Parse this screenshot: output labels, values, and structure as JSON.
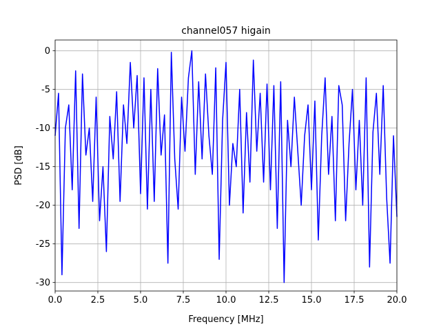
{
  "chart_data": {
    "type": "line",
    "title": "channel057 higain",
    "xlabel": "Frequency [MHz]",
    "ylabel": "PSD [dB]",
    "x": [
      0,
      0.2,
      0.4,
      0.6,
      0.8,
      1,
      1.2,
      1.4,
      1.6,
      1.8,
      2,
      2.2,
      2.4,
      2.6,
      2.8,
      3,
      3.2,
      3.4,
      3.6,
      3.8,
      4,
      4.2,
      4.4,
      4.6,
      4.8,
      5,
      5.2,
      5.4,
      5.6,
      5.8,
      6,
      6.2,
      6.4,
      6.6,
      6.8,
      7,
      7.2,
      7.4,
      7.6,
      7.8,
      8,
      8.2,
      8.4,
      8.6,
      8.8,
      9,
      9.2,
      9.4,
      9.6,
      9.8,
      10,
      10.2,
      10.4,
      10.6,
      10.8,
      11,
      11.2,
      11.4,
      11.6,
      11.8,
      12,
      12.2,
      12.4,
      12.6,
      12.8,
      13,
      13.2,
      13.4,
      13.6,
      13.8,
      14,
      14.2,
      14.4,
      14.6,
      14.8,
      15,
      15.2,
      15.4,
      15.6,
      15.8,
      16,
      16.2,
      16.4,
      16.6,
      16.8,
      17,
      17.2,
      17.4,
      17.6,
      17.8,
      18,
      18.2,
      18.4,
      18.6,
      18.8,
      19,
      19.2,
      19.4,
      19.6,
      19.8,
      20
    ],
    "series": [
      {
        "name": "channel057",
        "color": "#0000ff",
        "values": [
          -11,
          -5.5,
          -29,
          -10,
          -7,
          -18,
          -2.6,
          -23,
          -3,
          -13.5,
          -10,
          -19.5,
          -6,
          -22,
          -15,
          -26,
          -8.5,
          -14,
          -5.3,
          -19.5,
          -7,
          -12,
          -1.5,
          -10,
          -3.2,
          -18.5,
          -3.5,
          -20.5,
          -5,
          -19.5,
          -2.3,
          -13.5,
          -8.3,
          -27.5,
          -0.2,
          -14,
          -20.5,
          -6,
          -13,
          -3.5,
          0,
          -16,
          -4,
          -14,
          -3,
          -11,
          -16,
          -2.2,
          -27,
          -9,
          -1.5,
          -20,
          -12,
          -15,
          -5,
          -21,
          -8,
          -17,
          -1.2,
          -13,
          -5.5,
          -17,
          -4.3,
          -18,
          -4.5,
          -23,
          -4,
          -30,
          -9,
          -15,
          -6,
          -13,
          -20,
          -11,
          -7,
          -18,
          -6.5,
          -24.5,
          -11,
          -3.5,
          -16,
          -8.5,
          -22,
          -4.5,
          -7,
          -22,
          -12,
          -5,
          -18,
          -9,
          -20,
          -3.5,
          -28,
          -10.5,
          -5.5,
          -16,
          -4.5,
          -19,
          -27.5,
          -11,
          -21.5
        ]
      }
    ],
    "xlim": [
      0,
      20
    ],
    "xticks": [
      {
        "value": 0,
        "label": "0.0"
      },
      {
        "value": 2.5,
        "label": "2.5"
      },
      {
        "value": 5,
        "label": "5.0"
      },
      {
        "value": 7.5,
        "label": "7.5"
      },
      {
        "value": 10,
        "label": "10.0"
      },
      {
        "value": 12.5,
        "label": "12.5"
      },
      {
        "value": 15,
        "label": "15.0"
      },
      {
        "value": 17.5,
        "label": "17.5"
      },
      {
        "value": 20,
        "label": "20.0"
      }
    ],
    "ylim": [
      -31.1,
      1.4
    ],
    "yticks": [
      0,
      -5,
      -10,
      -15,
      -20,
      -25,
      -30
    ],
    "grid": true
  }
}
